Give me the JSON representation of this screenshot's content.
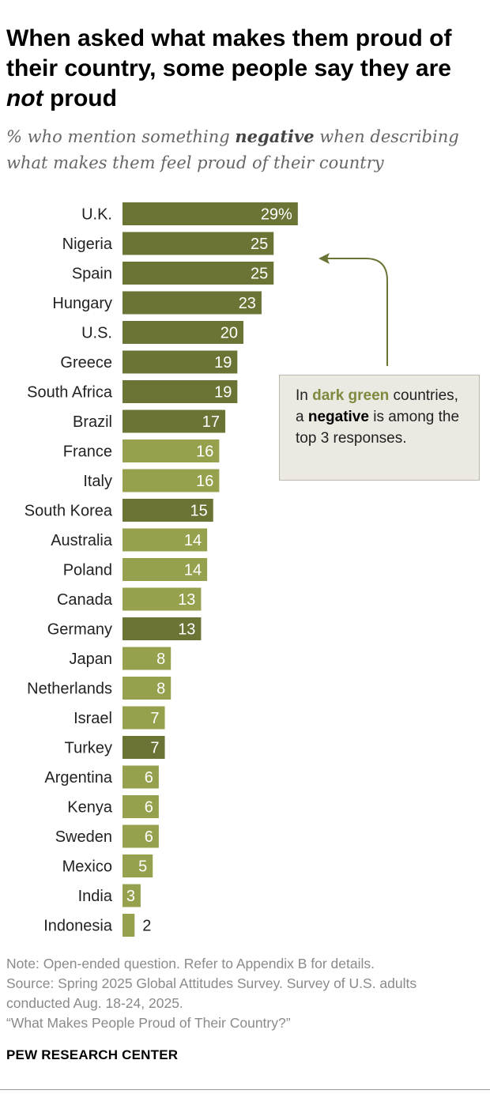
{
  "title": {
    "line1": "When asked what makes them proud of",
    "line2": "their country, some people say they are",
    "line3_em": "not",
    "line3_rest": " proud"
  },
  "subtitle": {
    "pre": "% who mention something ",
    "bold": "negative",
    "post": " when describing what makes them feel proud of their country"
  },
  "callout": {
    "t1": "In ",
    "green": "dark green",
    "t2": " countries, a ",
    "neg": "negative",
    "t3": " is among the top 3 responses."
  },
  "colors": {
    "dark": "#6b7435",
    "light": "#97a14d",
    "callout_green": "#7e8a3d"
  },
  "chart_data": {
    "type": "bar",
    "orientation": "horizontal",
    "title": "When asked what makes them proud of their country, some people say they are not proud",
    "subtitle": "% who mention something negative when describing what makes them feel proud of their country",
    "xlim": [
      0,
      30
    ],
    "categories": [
      "U.K.",
      "Nigeria",
      "Spain",
      "Hungary",
      "U.S.",
      "Greece",
      "South Africa",
      "Brazil",
      "France",
      "Italy",
      "South Korea",
      "Australia",
      "Poland",
      "Canada",
      "Germany",
      "Japan",
      "Netherlands",
      "Israel",
      "Turkey",
      "Argentina",
      "Kenya",
      "Sweden",
      "Mexico",
      "India",
      "Indonesia"
    ],
    "values": [
      29,
      25,
      25,
      23,
      20,
      19,
      19,
      17,
      16,
      16,
      15,
      14,
      14,
      13,
      13,
      8,
      8,
      7,
      7,
      6,
      6,
      6,
      5,
      3,
      2
    ],
    "value_labels": [
      "29%",
      "25",
      "25",
      "23",
      "20",
      "19",
      "19",
      "17",
      "16",
      "16",
      "15",
      "14",
      "14",
      "13",
      "13",
      "8",
      "8",
      "7",
      "7",
      "6",
      "6",
      "6",
      "5",
      "3",
      "2"
    ],
    "negative_in_top3": [
      true,
      true,
      true,
      true,
      true,
      true,
      true,
      true,
      false,
      false,
      true,
      false,
      false,
      false,
      true,
      false,
      false,
      false,
      true,
      false,
      false,
      false,
      false,
      false,
      false
    ]
  },
  "notes": {
    "note": "Note: Open-ended question. Refer to Appendix B for details.",
    "source1": "Source: Spring 2025 Global Attitudes Survey. Survey of U.S. adults",
    "source2": "conducted Aug. 18-24, 2025.",
    "report": "“What Makes People Proud of Their Country?”"
  },
  "brand": "PEW RESEARCH CENTER"
}
